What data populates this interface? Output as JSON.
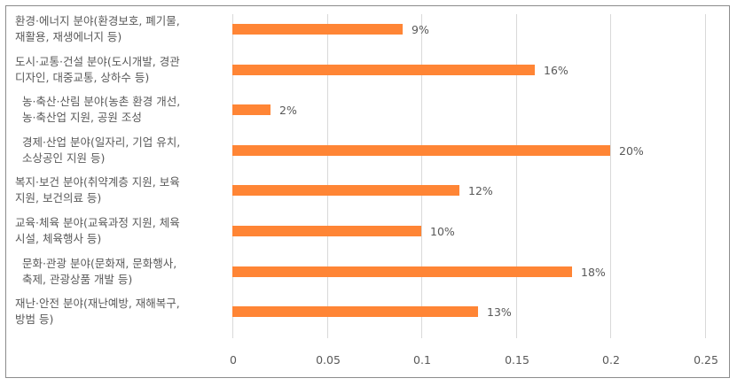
{
  "chart_data": {
    "type": "bar",
    "orientation": "horizontal",
    "title": "",
    "xlabel": "",
    "ylabel": "",
    "xlim": [
      0,
      0.25
    ],
    "grid": true,
    "legend": null,
    "color": "#ff8535",
    "categories": [
      "환경·에너지 분야(환경보호, 폐기물, 재활용, 재생에너지 등)",
      "도시·교통·건설 분야(도시개발, 경관 디자인, 대중교통, 상하수 등)",
      "농·축산·산림 분야(농촌 환경 개선, 농·축산업 지원, 공원 조성",
      "경제·산업 분야(일자리, 기업 유치, 소상공인 지원 등)",
      "복지·보건 분야(취약계층 지원, 보육 지원, 보건의료 등)",
      "교육·체육 분야(교육과정 지원, 체육 시설, 체육행사 등)",
      "문화·관광 분야(문화재, 문화행사, 축제, 관광상품 개발 등)",
      "재난·안전 분야(재난예방, 재해복구, 방범 등)"
    ],
    "values": [
      0.09,
      0.16,
      0.02,
      0.2,
      0.12,
      0.1,
      0.18,
      0.13
    ],
    "data_labels": [
      "9%",
      "16%",
      "2%",
      "20%",
      "12%",
      "10%",
      "18%",
      "13%"
    ],
    "x_ticks": [
      "0",
      "0.05",
      "0.1",
      "0.15",
      "0.2",
      "0.25"
    ]
  },
  "labels": [
    {
      "line1": "환경·에너지 분야(환경보호, 폐기물,",
      "line2": "재활용, 재생에너지 등)"
    },
    {
      "line1": "도시·교통·건설 분야(도시개발, 경관",
      "line2": "디자인, 대중교통, 상하수 등)"
    },
    {
      "line1": "농·축산·산림 분야(농촌 환경 개선,",
      "line2": "농·축산업 지원, 공원 조성"
    },
    {
      "line1": "경제·산업 분야(일자리, 기업 유치,",
      "line2": "소상공인 지원 등)"
    },
    {
      "line1": "복지·보건 분야(취약계층 지원, 보육",
      "line2": "지원, 보건의료 등)"
    },
    {
      "line1": "교육·체육 분야(교육과정 지원, 체육",
      "line2": "시설, 체육행사 등)"
    },
    {
      "line1": "문화·관광 분야(문화재, 문화행사,",
      "line2": "축제, 관광상품 개발 등)"
    },
    {
      "line1": "재난·안전 분야(재난예방, 재해복구,",
      "line2": "방범 등)"
    }
  ]
}
